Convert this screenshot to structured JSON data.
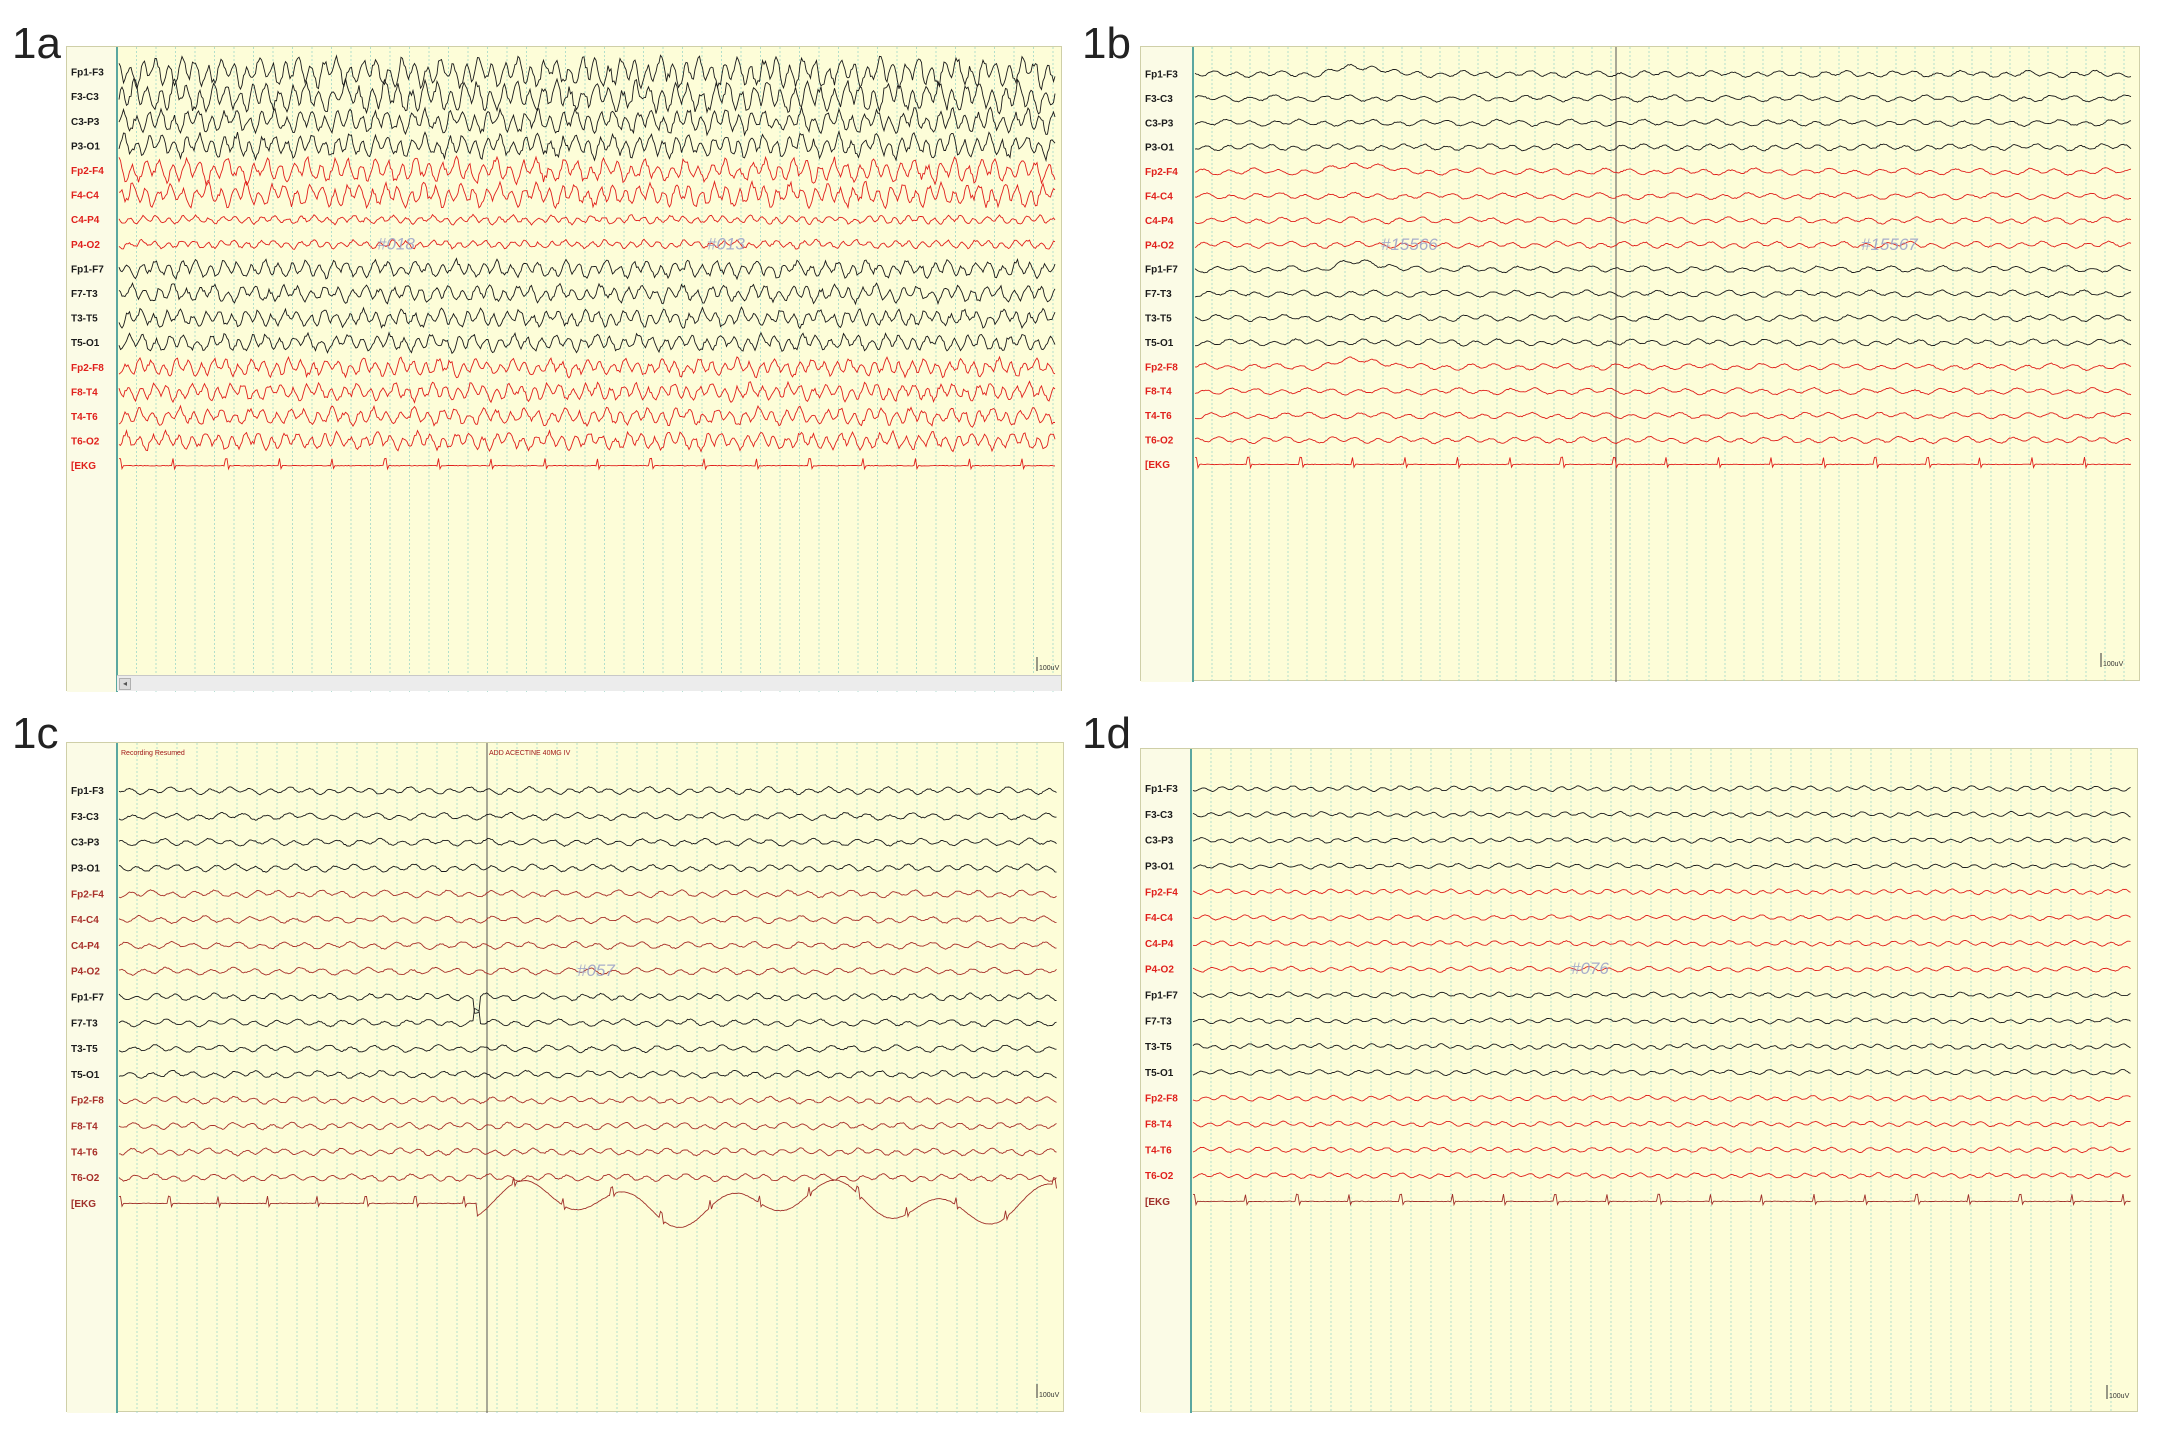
{
  "panels": [
    {
      "id": "1a",
      "label": "1a",
      "watermarks": [
        "#018",
        "#013"
      ],
      "annotations": [],
      "scale_label": "100uV",
      "has_scrollbar": true,
      "channels": [
        "Fp1-F3",
        "F3-C3",
        "C3-P3",
        "P3-O1",
        "Fp2-F4",
        "F4-C4",
        "C4-P4",
        "P4-O2",
        "Fp1-F7",
        "F7-T3",
        "T3-T5",
        "T5-O1",
        "Fp2-F8",
        "F8-T4",
        "T4-T6",
        "T6-O2",
        "[EKG"
      ]
    },
    {
      "id": "1b",
      "label": "1b",
      "watermarks": [
        "#15566",
        "#15567"
      ],
      "annotations": [],
      "scale_label": "100uV",
      "has_scrollbar": false,
      "channels": [
        "Fp1-F3",
        "F3-C3",
        "C3-P3",
        "P3-O1",
        "Fp2-F4",
        "F4-C4",
        "C4-P4",
        "P4-O2",
        "Fp1-F7",
        "F7-T3",
        "T3-T5",
        "T5-O1",
        "Fp2-F8",
        "F8-T4",
        "T4-T6",
        "T6-O2",
        "[EKG"
      ]
    },
    {
      "id": "1c",
      "label": "1c",
      "watermarks": [
        "#057"
      ],
      "annotations": [
        "Recording Resumed",
        "ADD ACECTINE 40MG IV"
      ],
      "scale_label": "100uV",
      "has_scrollbar": false,
      "channels": [
        "Fp1-F3",
        "F3-C3",
        "C3-P3",
        "P3-O1",
        "Fp2-F4",
        "F4-C4",
        "C4-P4",
        "P4-O2",
        "Fp1-F7",
        "F7-T3",
        "T3-T5",
        "T5-O1",
        "Fp2-F8",
        "F8-T4",
        "T4-T6",
        "T6-O2",
        "[EKG"
      ]
    },
    {
      "id": "1d",
      "label": "1d",
      "watermarks": [
        "#076"
      ],
      "annotations": [],
      "scale_label": "100uV",
      "has_scrollbar": false,
      "channels": [
        "Fp1-F3",
        "F3-C3",
        "C3-P3",
        "P3-O1",
        "Fp2-F4",
        "F4-C4",
        "C4-P4",
        "P4-O2",
        "Fp1-F7",
        "F7-T3",
        "T3-T5",
        "T5-O1",
        "Fp2-F8",
        "F8-T4",
        "T4-T6",
        "T6-O2",
        "[EKG"
      ]
    }
  ],
  "colors": {
    "left_hemisphere": "#1a1a1a",
    "right_hemisphere": "#e0201c",
    "right_hemisphere_1c": "#a8302a",
    "ekg_1a": "#e0201c",
    "ekg_1c": "#a0302a",
    "grid": "#9fd8c8",
    "panel_bg": "#fdfdd8"
  },
  "trace_style": {
    "1a": {
      "amp": 1.6,
      "freq": 1.3,
      "noise": 1.0,
      "ekg_color": "#e0201c"
    },
    "1b": {
      "amp": 0.55,
      "freq": 0.7,
      "noise": 0.6,
      "ekg_color": "#e0201c"
    },
    "1c": {
      "amp": 0.6,
      "freq": 0.8,
      "noise": 0.6,
      "ekg_color": "#a0302a"
    },
    "1d": {
      "amp": 0.45,
      "freq": 0.9,
      "noise": 0.5,
      "ekg_color": "#a0302a"
    }
  }
}
